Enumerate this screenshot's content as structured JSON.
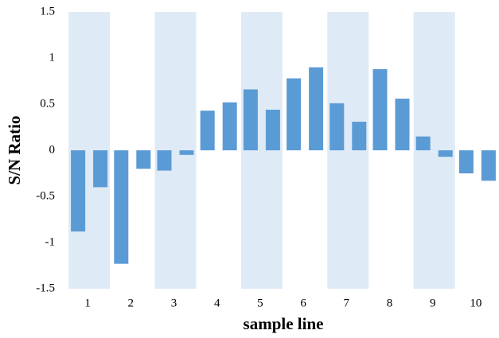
{
  "chart_data": {
    "type": "bar",
    "y_label": "S/N Ratio",
    "x_label": "sample line",
    "categories": [
      "1",
      "2",
      "3",
      "4",
      "5",
      "6",
      "7",
      "8",
      "9",
      "10"
    ],
    "series": [
      {
        "color": "#5b9bd5",
        "values": [
          -0.88,
          -1.23,
          -0.22,
          0.43,
          0.66,
          0.78,
          0.51,
          0.88,
          0.15,
          -0.25
        ]
      },
      {
        "color": "#5b9bd5",
        "values": [
          -0.4,
          -0.2,
          -0.05,
          0.52,
          0.44,
          0.9,
          0.31,
          0.56,
          -0.07,
          -0.33
        ]
      }
    ],
    "ylim": [
      -1.5,
      1.5
    ],
    "yticks": [
      -1.5,
      -1,
      -0.5,
      0,
      0.5,
      1,
      1.5
    ],
    "band_color": "#deeaf6"
  }
}
